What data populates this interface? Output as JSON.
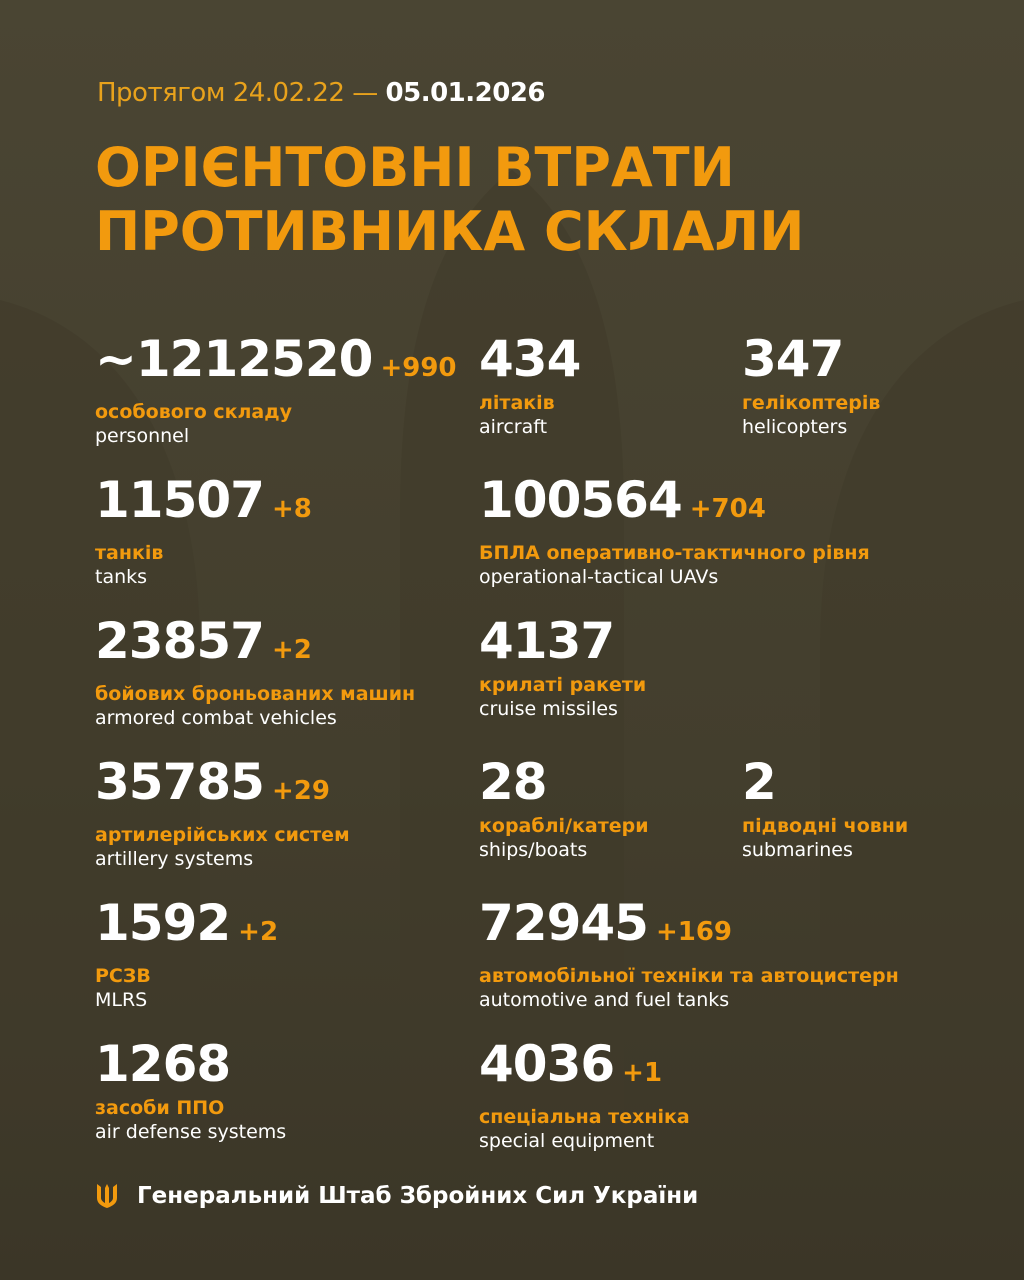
{
  "header": {
    "period_prefix": "Протягом 24.02.22 —",
    "period_end": "05.01.2026",
    "title_line1": "ОРІЄНТОВНІ ВТРАТИ",
    "title_line2": "ПРОТИВНИКА СКЛАЛИ"
  },
  "stats": [
    {
      "value": "~1212520",
      "delta": "+990",
      "ua": "особового складу",
      "en": "personnel"
    },
    {
      "value": "434",
      "delta": "",
      "ua": "літаків",
      "en": "aircraft"
    },
    {
      "value": "347",
      "delta": "",
      "ua": "гелікоптерів",
      "en": "helicopters"
    },
    {
      "value": "11507",
      "delta": "+8",
      "ua": "танків",
      "en": "tanks"
    },
    {
      "value": "100564",
      "delta": "+704",
      "ua": "БПЛА оперативно-тактичного рівня",
      "en": "operational-tactical UAVs"
    },
    {
      "value": "23857",
      "delta": "+2",
      "ua": "бойових броньованих машин",
      "en": "armored combat vehicles"
    },
    {
      "value": "4137",
      "delta": "",
      "ua": "крилаті ракети",
      "en": "cruise missiles"
    },
    {
      "value": "35785",
      "delta": "+29",
      "ua": "артилерійських систем",
      "en": "artillery systems"
    },
    {
      "value": "28",
      "delta": "",
      "ua": "кораблі/катери",
      "en": "ships/boats"
    },
    {
      "value": "2",
      "delta": "",
      "ua": "підводні човни",
      "en": "submarines"
    },
    {
      "value": "1592",
      "delta": "+2",
      "ua": "РСЗВ",
      "en": "MLRS"
    },
    {
      "value": "72945",
      "delta": "+169",
      "ua": "автомобільної техніки та автоцистерн",
      "en": "automotive and fuel tanks"
    },
    {
      "value": "1268",
      "delta": "",
      "ua": "засоби ППО",
      "en": "air defense systems"
    },
    {
      "value": "4036",
      "delta": "+1",
      "ua": "спеціальна техніка",
      "en": "special equipment"
    }
  ],
  "footer": {
    "text": "Генеральний Штаб Збройних Сил України",
    "icon": "trident-icon"
  },
  "colors": {
    "accent": "#f29a0e",
    "background": "#48432f"
  }
}
